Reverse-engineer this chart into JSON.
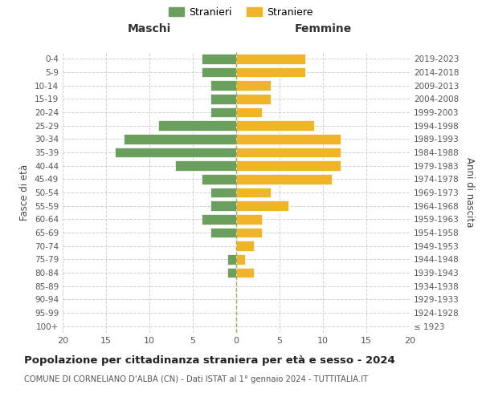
{
  "age_groups": [
    "100+",
    "95-99",
    "90-94",
    "85-89",
    "80-84",
    "75-79",
    "70-74",
    "65-69",
    "60-64",
    "55-59",
    "50-54",
    "45-49",
    "40-44",
    "35-39",
    "30-34",
    "25-29",
    "20-24",
    "15-19",
    "10-14",
    "5-9",
    "0-4"
  ],
  "birth_years": [
    "≤ 1923",
    "1924-1928",
    "1929-1933",
    "1934-1938",
    "1939-1943",
    "1944-1948",
    "1949-1953",
    "1954-1958",
    "1959-1963",
    "1964-1968",
    "1969-1973",
    "1974-1978",
    "1979-1983",
    "1984-1988",
    "1989-1993",
    "1994-1998",
    "1999-2003",
    "2004-2008",
    "2009-2013",
    "2014-2018",
    "2019-2023"
  ],
  "maschi": [
    0,
    0,
    0,
    0,
    1,
    1,
    0,
    3,
    4,
    3,
    3,
    4,
    7,
    14,
    13,
    9,
    3,
    3,
    3,
    4,
    4
  ],
  "femmine": [
    0,
    0,
    0,
    0,
    2,
    1,
    2,
    3,
    3,
    6,
    4,
    11,
    12,
    12,
    12,
    9,
    3,
    4,
    4,
    8,
    8
  ],
  "maschi_color": "#6a9f5e",
  "femmine_color": "#f0b429",
  "background_color": "#ffffff",
  "grid_color": "#cccccc",
  "title": "Popolazione per cittadinanza straniera per età e sesso - 2024",
  "subtitle": "COMUNE DI CORNELIANO D'ALBA (CN) - Dati ISTAT al 1° gennaio 2024 - TUTTITALIA.IT",
  "maschi_label": "Stranieri",
  "femmine_label": "Straniere",
  "maschi_header": "Maschi",
  "femmine_header": "Femmine",
  "ylabel_left": "Fasce di età",
  "ylabel_right": "Anni di nascita",
  "xlim": [
    -20,
    20
  ],
  "xticks": [
    -20,
    -15,
    -10,
    -5,
    0,
    5,
    10,
    15,
    20
  ],
  "xticklabels": [
    "20",
    "15",
    "10",
    "5",
    "0",
    "5",
    "10",
    "15",
    "20"
  ],
  "bar_height": 0.75
}
